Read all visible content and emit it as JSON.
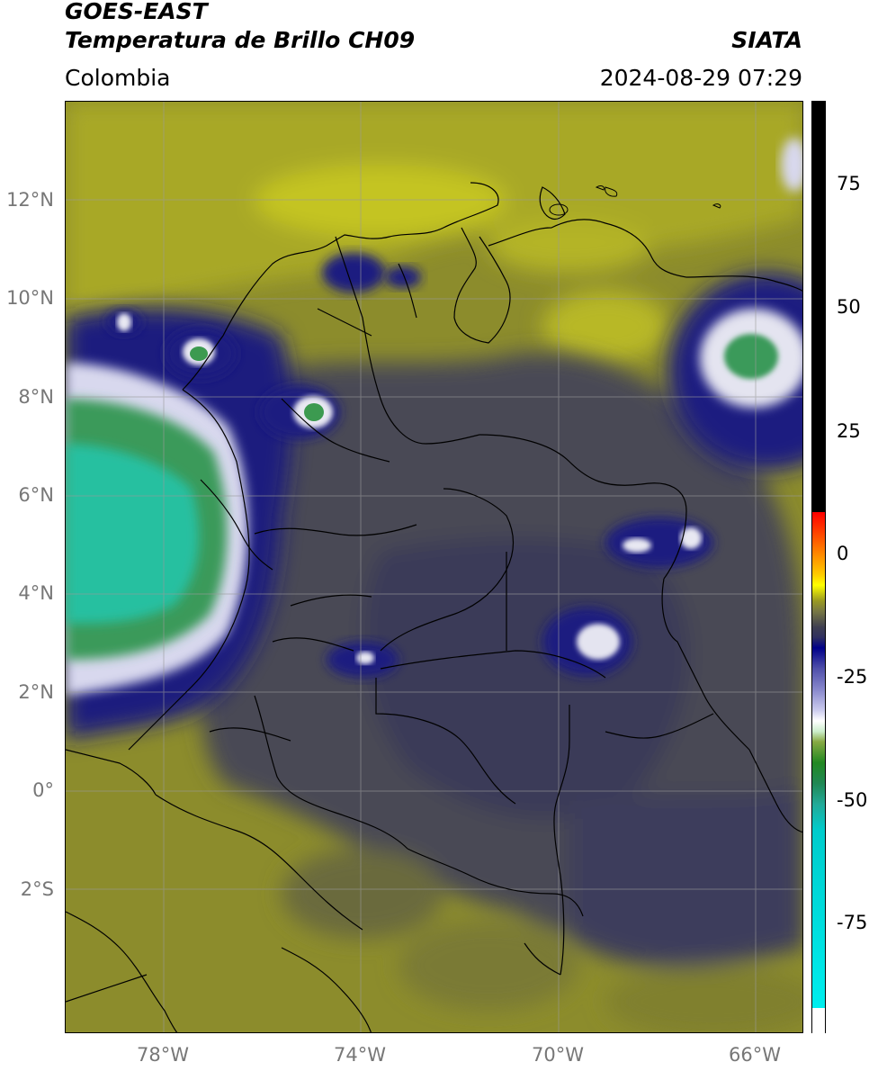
{
  "header": {
    "title_line1": "GOES-EAST",
    "title_line2": "Temperatura de Brillo CH09",
    "region": "Colombia",
    "source": "SIATA",
    "datetime": "2024-08-29 07:29"
  },
  "axes": {
    "lat_labels": [
      "12°N",
      "10°N",
      "8°N",
      "6°N",
      "4°N",
      "2°N",
      "0°",
      "2°S"
    ],
    "lon_labels": [
      "78°W",
      "74°W",
      "70°W",
      "66°W"
    ]
  },
  "colorbar": {
    "tick_labels": [
      "75",
      "50",
      "25",
      "0",
      "-25",
      "-50",
      "-75"
    ],
    "stops": [
      {
        "value": 90,
        "color": "#000000"
      },
      {
        "value": 8,
        "color": "#000000"
      },
      {
        "value": 7,
        "color": "#ff0000"
      },
      {
        "value": -5,
        "color": "#ff9900"
      },
      {
        "value": -13,
        "color": "#ffff00"
      },
      {
        "value": -19,
        "color": "#999922"
      },
      {
        "value": -25,
        "color": "#404050"
      },
      {
        "value": -28,
        "color": "#000088"
      },
      {
        "value": -40,
        "color": "#8888cc"
      },
      {
        "value": -50,
        "color": "#ffffff"
      },
      {
        "value": -60,
        "color": "#228822"
      },
      {
        "value": -78,
        "color": "#22aa99"
      },
      {
        "value": -90,
        "color": "#00eeee"
      },
      {
        "value": -92,
        "color": "#ffffff"
      }
    ]
  },
  "colors": {
    "background_olive": "#8c8c2c",
    "yellow_olive": "#bcbc24",
    "dark_gray": "#4a4a55",
    "navy": "#101a80",
    "green": "#3aa070",
    "teal": "#25c0a0",
    "border": "#000000",
    "grid": "#9a9a9a"
  }
}
